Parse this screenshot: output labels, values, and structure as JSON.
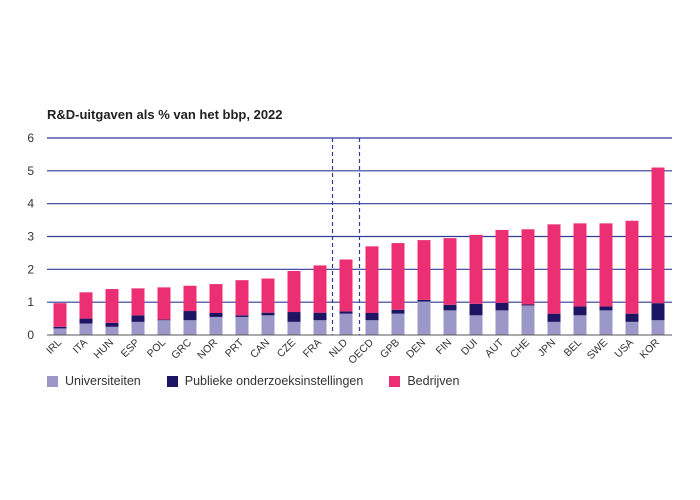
{
  "chart_data": {
    "type": "bar",
    "stacked": true,
    "title": "R&D-uitgaven als % van het bbp, 2022",
    "xlabel": "",
    "ylabel": "",
    "ylim": [
      0,
      6
    ],
    "yticks": [
      0,
      1,
      2,
      3,
      4,
      5,
      6
    ],
    "grid": true,
    "legend_position": "bottom",
    "highlight_category": "NLD",
    "categories": [
      "IRL",
      "ITA",
      "HUN",
      "ESP",
      "POL",
      "GRC",
      "NOR",
      "PRT",
      "CAN",
      "CZE",
      "FRA",
      "NLD",
      "OECD",
      "GPB",
      "DEN",
      "FIN",
      "DUI",
      "AUT",
      "CHE",
      "JPN",
      "BEL",
      "SWE",
      "USA",
      "KOR"
    ],
    "series": [
      {
        "name": "Universiteiten",
        "color": "#9b97c9",
        "values": [
          0.2,
          0.35,
          0.25,
          0.4,
          0.45,
          0.45,
          0.55,
          0.55,
          0.6,
          0.4,
          0.45,
          0.65,
          0.45,
          0.65,
          1.02,
          0.75,
          0.6,
          0.75,
          0.9,
          0.4,
          0.6,
          0.75,
          0.4,
          0.45
        ]
      },
      {
        "name": "Publieke onderzoeksinstellingen",
        "color": "#1e1464",
        "values": [
          0.05,
          0.15,
          0.12,
          0.2,
          0.02,
          0.28,
          0.12,
          0.05,
          0.08,
          0.3,
          0.23,
          0.07,
          0.22,
          0.12,
          0.05,
          0.17,
          0.35,
          0.23,
          0.03,
          0.25,
          0.27,
          0.12,
          0.25,
          0.52
        ]
      },
      {
        "name": "Bedrijven",
        "color": "#ec2f73",
        "values": [
          0.72,
          0.8,
          1.03,
          0.82,
          0.98,
          0.77,
          0.88,
          1.07,
          1.04,
          1.25,
          1.44,
          1.58,
          2.03,
          2.03,
          1.82,
          2.03,
          2.1,
          2.22,
          2.29,
          2.72,
          2.53,
          2.53,
          2.83,
          4.13
        ]
      }
    ]
  }
}
